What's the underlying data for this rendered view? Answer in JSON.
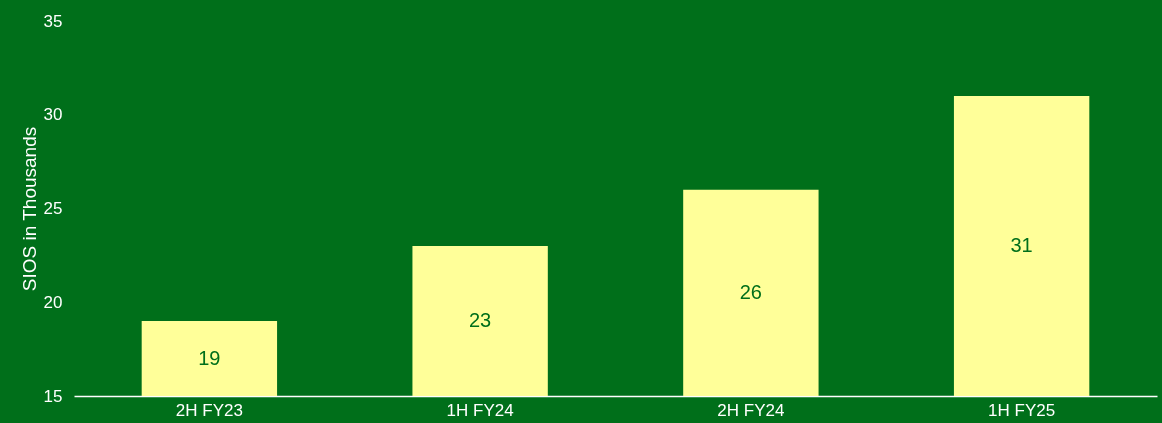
{
  "chart_data": {
    "type": "bar",
    "ylabel": "SIOS in Thousands",
    "categories": [
      "2H FY23",
      "1H FY24",
      "2H FY24",
      "1H FY25"
    ],
    "values": [
      19,
      23,
      26,
      31
    ],
    "color": "#ffff99",
    "ylim": [
      15,
      35
    ],
    "yticks": [
      15,
      20,
      25,
      30,
      35
    ],
    "grid": false,
    "data_labels": true
  }
}
